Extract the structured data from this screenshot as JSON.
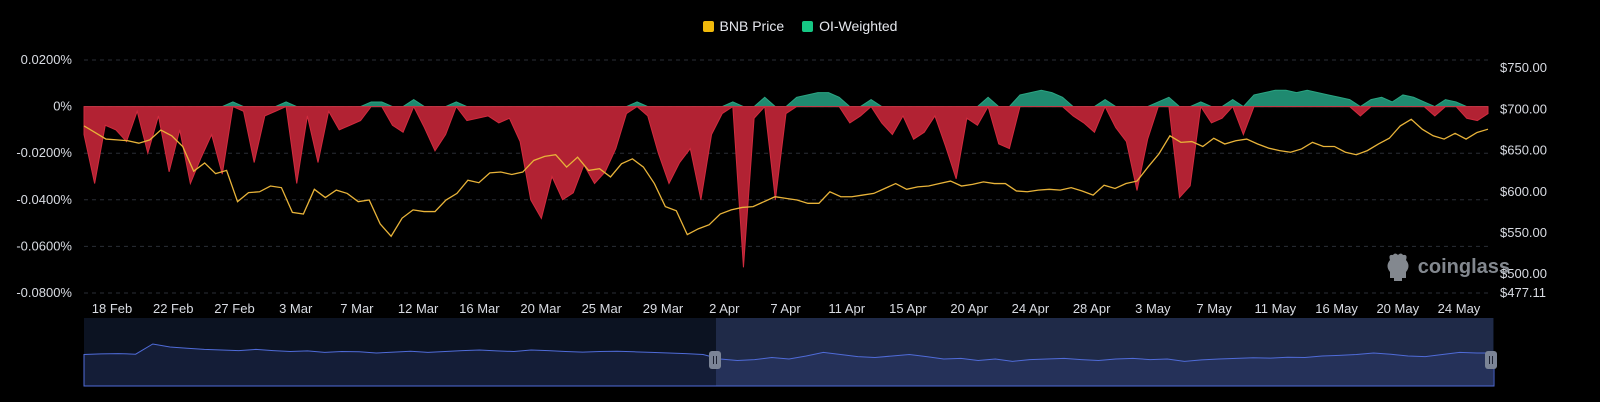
{
  "legend": {
    "items": [
      {
        "label": "BNB Price",
        "color": "#f0b90b"
      },
      {
        "label": "OI-Weighted",
        "color": "#16c784"
      }
    ]
  },
  "watermark": {
    "text": "coinglass"
  },
  "colors": {
    "positive": "#1f8a70",
    "negative": "#b22233",
    "price": "#e8b339",
    "grid": "#2a2e36",
    "navigator": "#4f6bd8"
  },
  "chart_data": {
    "type": "area",
    "title": "",
    "x_labels": [
      "18 Feb",
      "22 Feb",
      "27 Feb",
      "3 Mar",
      "7 Mar",
      "12 Mar",
      "16 Mar",
      "20 Mar",
      "25 Mar",
      "29 Mar",
      "2 Apr",
      "7 Apr",
      "11 Apr",
      "15 Apr",
      "20 Apr",
      "24 Apr",
      "28 Apr",
      "3 May",
      "7 May",
      "11 May",
      "16 May",
      "20 May",
      "24 May"
    ],
    "y_left": {
      "label": "",
      "ticks": [
        "0.0200%",
        "0%",
        "-0.0200%",
        "-0.0400%",
        "-0.0600%",
        "-0.0800%"
      ],
      "range": [
        -0.08,
        0.02
      ]
    },
    "y_right": {
      "label": "",
      "ticks": [
        "$750.00",
        "$700.00",
        "$650.00",
        "$600.00",
        "$550.00",
        "$500.00",
        "$477.11"
      ],
      "range": [
        477.11,
        760
      ]
    },
    "series": [
      {
        "name": "OI-Weighted",
        "axis": "left",
        "unit": "%",
        "values": [
          -0.012,
          -0.033,
          -0.008,
          -0.01,
          -0.015,
          -0.002,
          -0.02,
          -0.004,
          -0.028,
          -0.01,
          -0.033,
          -0.022,
          -0.012,
          -0.029,
          0.002,
          -0.002,
          -0.024,
          -0.004,
          -0.002,
          0.002,
          -0.033,
          -0.004,
          -0.024,
          -0.002,
          -0.01,
          -0.008,
          -0.006,
          0.002,
          0.002,
          -0.008,
          -0.011,
          0.003,
          -0.009,
          -0.019,
          -0.012,
          0.002,
          -0.006,
          -0.005,
          -0.004,
          -0.007,
          -0.005,
          -0.015,
          -0.04,
          -0.048,
          -0.03,
          -0.04,
          -0.037,
          -0.025,
          -0.033,
          -0.028,
          -0.018,
          -0.003,
          0.002,
          -0.004,
          -0.02,
          -0.033,
          -0.024,
          -0.018,
          -0.04,
          -0.012,
          -0.003,
          0.002,
          -0.069,
          -0.005,
          0.004,
          -0.04,
          -0.003,
          0.004,
          0.005,
          0.006,
          0.006,
          0.004,
          -0.007,
          -0.004,
          0.003,
          -0.007,
          -0.012,
          -0.004,
          -0.014,
          -0.011,
          -0.004,
          -0.017,
          -0.031,
          -0.005,
          -0.008,
          0.004,
          -0.016,
          -0.018,
          0.005,
          0.006,
          0.007,
          0.006,
          0.004,
          -0.004,
          -0.007,
          -0.011,
          0.003,
          -0.009,
          -0.015,
          -0.036,
          -0.014,
          0.002,
          0.004,
          -0.039,
          -0.034,
          0.002,
          -0.007,
          -0.005,
          0.003,
          -0.012,
          0.005,
          0.006,
          0.007,
          0.007,
          0.006,
          0.007,
          0.006,
          0.005,
          0.004,
          0.003,
          -0.004,
          0.003,
          0.004,
          0.002,
          0.005,
          0.004,
          0.002,
          -0.004,
          0.003,
          0.002,
          -0.005,
          -0.006,
          -0.003
        ]
      },
      {
        "name": "BNB Price",
        "axis": "right",
        "unit": "$",
        "values": [
          680,
          672,
          664,
          663,
          662,
          659,
          663,
          675,
          668,
          655,
          625,
          635,
          622,
          626,
          588,
          599,
          600,
          607,
          605,
          575,
          573,
          603,
          593,
          602,
          598,
          588,
          590,
          561,
          546,
          568,
          578,
          576,
          576,
          590,
          598,
          614,
          611,
          623,
          624,
          621,
          624,
          638,
          643,
          645,
          630,
          642,
          626,
          628,
          618,
          634,
          640,
          630,
          610,
          582,
          577,
          548,
          555,
          560,
          573,
          578,
          581,
          582,
          588,
          594,
          592,
          590,
          586,
          586,
          600,
          594,
          594,
          596,
          598,
          604,
          610,
          603,
          606,
          607,
          610,
          613,
          607,
          609,
          612,
          610,
          610,
          601,
          600,
          602,
          603,
          602,
          605,
          601,
          596,
          608,
          604,
          610,
          613,
          630,
          646,
          668,
          660,
          661,
          655,
          665,
          658,
          662,
          664,
          658,
          653,
          650,
          648,
          652,
          660,
          655,
          655,
          648,
          645,
          650,
          658,
          665,
          680,
          688,
          676,
          668,
          664,
          671,
          664,
          672,
          676
        ]
      },
      {
        "name": "Navigator",
        "axis": "overview",
        "unit": "",
        "values": [
          0.45,
          0.47,
          0.48,
          0.46,
          0.8,
          0.7,
          0.66,
          0.62,
          0.6,
          0.58,
          0.62,
          0.58,
          0.55,
          0.57,
          0.52,
          0.55,
          0.54,
          0.5,
          0.53,
          0.56,
          0.52,
          0.55,
          0.58,
          0.6,
          0.57,
          0.55,
          0.6,
          0.58,
          0.55,
          0.53,
          0.55,
          0.56,
          0.54,
          0.52,
          0.5,
          0.48,
          0.45,
          0.3,
          0.25,
          0.28,
          0.35,
          0.3,
          0.4,
          0.52,
          0.45,
          0.38,
          0.35,
          0.4,
          0.45,
          0.38,
          0.3,
          0.32,
          0.25,
          0.3,
          0.22,
          0.28,
          0.3,
          0.32,
          0.28,
          0.25,
          0.3,
          0.32,
          0.28,
          0.3,
          0.22,
          0.27,
          0.3,
          0.32,
          0.34,
          0.33,
          0.36,
          0.35,
          0.4,
          0.42,
          0.45,
          0.5,
          0.46,
          0.4,
          0.38,
          0.45,
          0.52,
          0.5,
          0.5
        ]
      }
    ],
    "grid": true,
    "legend_position": "top-center"
  }
}
